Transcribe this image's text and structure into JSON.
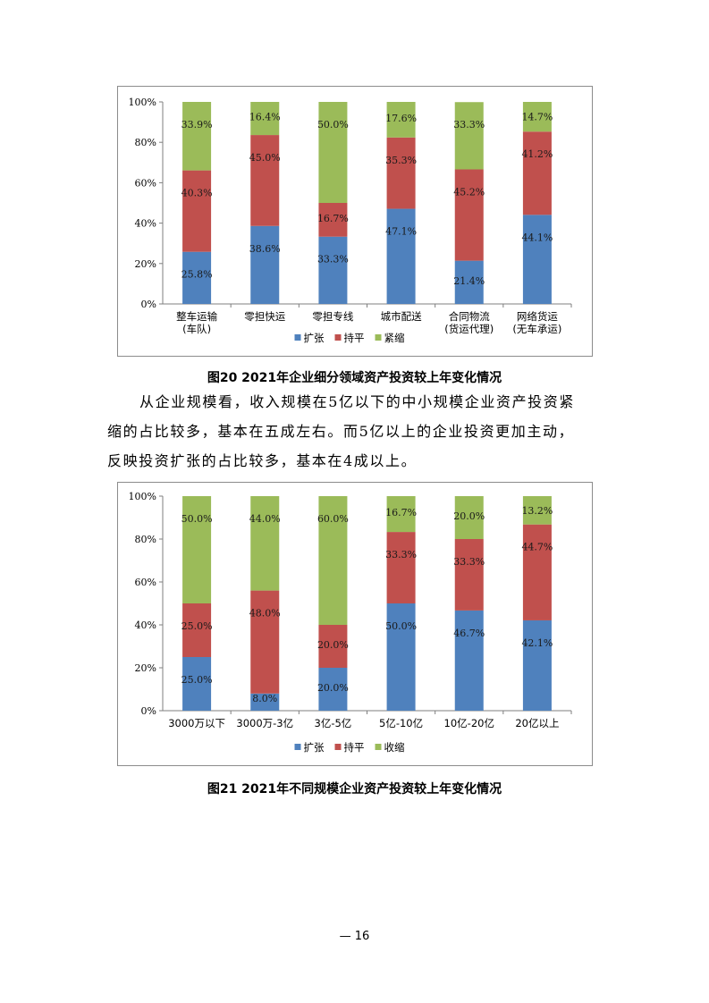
{
  "chart_data": [
    {
      "type": "stacked-bar-100",
      "title": "",
      "categories": [
        [
          "整车运输",
          "(车队)"
        ],
        [
          "零担快运"
        ],
        [
          "零担专线"
        ],
        [
          "城市配送"
        ],
        [
          "合同物流",
          "(货运代理)"
        ],
        [
          "网络货运",
          "(无车承运)"
        ]
      ],
      "series": [
        {
          "name": "扩张",
          "color": "#4f81bd",
          "values": [
            25.8,
            38.6,
            33.3,
            47.1,
            21.4,
            44.1
          ],
          "labels": [
            "25.8%",
            "38.6%",
            "33.3%",
            "47.1%",
            "21.4%",
            "44.1%"
          ]
        },
        {
          "name": "持平",
          "color": "#c0504d",
          "values": [
            40.3,
            45.0,
            16.7,
            35.3,
            45.2,
            41.2
          ],
          "labels": [
            "40.3%",
            "45.0%",
            "16.7%",
            "35.3%",
            "45.2%",
            "41.2%"
          ]
        },
        {
          "name": "紧缩",
          "color": "#9bbb59",
          "values": [
            33.9,
            16.4,
            50.0,
            17.6,
            33.3,
            14.7
          ],
          "labels": [
            "33.9%",
            "16.4%",
            "50.0%",
            "17.6%",
            "33.3%",
            "14.7%"
          ]
        }
      ],
      "yticks": [
        "0%",
        "20%",
        "40%",
        "60%",
        "80%",
        "100%"
      ],
      "ylim": [
        0,
        100
      ],
      "legend_position": "bottom"
    },
    {
      "type": "stacked-bar-100",
      "title": "",
      "categories": [
        [
          "3000万以下"
        ],
        [
          "3000万-3亿"
        ],
        [
          "3亿-5亿"
        ],
        [
          "5亿-10亿"
        ],
        [
          "10亿-20亿"
        ],
        [
          "20亿以上"
        ]
      ],
      "series": [
        {
          "name": "扩张",
          "color": "#4f81bd",
          "values": [
            25.0,
            8.0,
            20.0,
            50.0,
            46.7,
            42.1
          ],
          "labels": [
            "25.0%",
            "8.0%",
            "20.0%",
            "50.0%",
            "46.7%",
            "42.1%"
          ]
        },
        {
          "name": "持平",
          "color": "#c0504d",
          "values": [
            25.0,
            48.0,
            20.0,
            33.3,
            33.3,
            44.7
          ],
          "labels": [
            "25.0%",
            "48.0%",
            "20.0%",
            "33.3%",
            "33.3%",
            "44.7%"
          ]
        },
        {
          "name": "收缩",
          "color": "#9bbb59",
          "values": [
            50.0,
            44.0,
            60.0,
            16.7,
            20.0,
            13.2
          ],
          "labels": [
            "50.0%",
            "44.0%",
            "60.0%",
            "16.7%",
            "20.0%",
            "13.2%"
          ]
        }
      ],
      "yticks": [
        "0%",
        "20%",
        "40%",
        "60%",
        "80%",
        "100%"
      ],
      "ylim": [
        0,
        100
      ],
      "legend_position": "bottom"
    }
  ],
  "captions": {
    "figure20": "图20 2021年企业细分领域资产投资较上年变化情况",
    "figure21": "图21 2021年不同规模企业资产投资较上年变化情况"
  },
  "paragraph": {
    "line1": "从企业规模看，收入规模在5亿以下的中小规模企业资产投资紧",
    "line2": "缩的占比较多，基本在五成左右。而5亿以上的企业投资更加主动，",
    "line3": "反映投资扩张的占比较多，基本在4成以上。"
  },
  "page_number": "— 16"
}
